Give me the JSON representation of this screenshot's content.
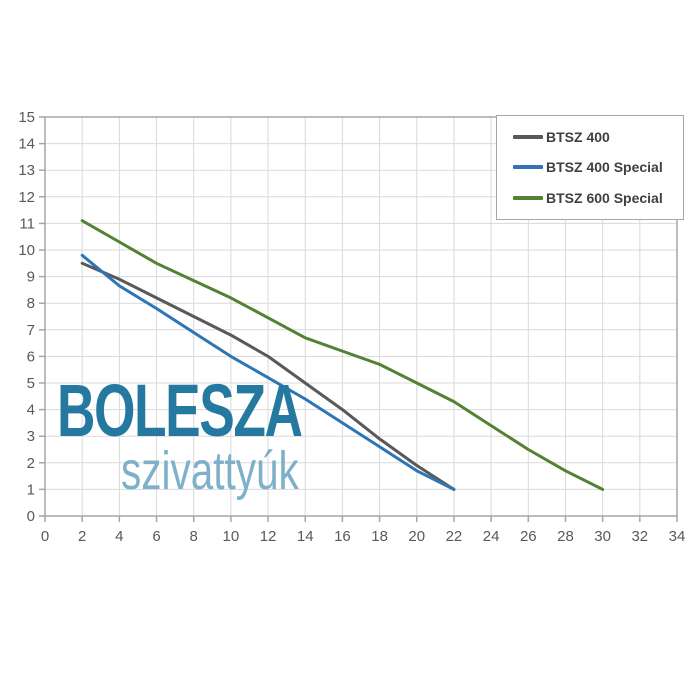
{
  "watermark": {
    "brand": "BOLESZA",
    "tagline": "szivattyúk",
    "brand_color": "#2579a0",
    "tagline_color": "#7fb0c9"
  },
  "chart_data": {
    "type": "line",
    "title": "",
    "xlabel": "",
    "ylabel": "",
    "xlim": [
      0,
      34
    ],
    "ylim": [
      0,
      15
    ],
    "x_ticks": [
      0,
      2,
      4,
      6,
      8,
      10,
      12,
      14,
      16,
      18,
      20,
      22,
      24,
      26,
      28,
      30,
      32,
      34
    ],
    "y_ticks": [
      0,
      1,
      2,
      3,
      4,
      5,
      6,
      7,
      8,
      9,
      10,
      11,
      12,
      13,
      14,
      15
    ],
    "grid": true,
    "legend_position": "top-right",
    "series": [
      {
        "name": "BTSZ 400",
        "color": "#595959",
        "points": [
          [
            2,
            9.5
          ],
          [
            4,
            8.9
          ],
          [
            6,
            8.2
          ],
          [
            8,
            7.5
          ],
          [
            10,
            6.8
          ],
          [
            12,
            6.0
          ],
          [
            14,
            5.0
          ],
          [
            16,
            4.0
          ],
          [
            18,
            2.9
          ],
          [
            20,
            1.9
          ],
          [
            22,
            1.0
          ]
        ]
      },
      {
        "name": "BTSZ 400 Special",
        "color": "#2e75b6",
        "points": [
          [
            2,
            9.8
          ],
          [
            4,
            8.65
          ],
          [
            6,
            7.8
          ],
          [
            8,
            6.9
          ],
          [
            10,
            6.0
          ],
          [
            12,
            5.2
          ],
          [
            14,
            4.4
          ],
          [
            16,
            3.5
          ],
          [
            18,
            2.6
          ],
          [
            20,
            1.7
          ],
          [
            22,
            1.0
          ]
        ]
      },
      {
        "name": "BTSZ 600 Special",
        "color": "#548235",
        "points": [
          [
            2,
            11.1
          ],
          [
            4,
            10.3
          ],
          [
            6,
            9.5
          ],
          [
            8,
            8.85
          ],
          [
            10,
            8.2
          ],
          [
            12,
            7.45
          ],
          [
            14,
            6.7
          ],
          [
            16,
            6.2
          ],
          [
            18,
            5.7
          ],
          [
            20,
            5.0
          ],
          [
            22,
            4.3
          ],
          [
            24,
            3.4
          ],
          [
            26,
            2.5
          ],
          [
            28,
            1.7
          ],
          [
            30,
            1.0
          ]
        ]
      }
    ],
    "colors": {
      "grid": "#d9d9d9",
      "axis": "#a6a6a6",
      "tick_label": "#595959",
      "legend_text": "#404040",
      "plot_background": "#ffffff"
    }
  }
}
